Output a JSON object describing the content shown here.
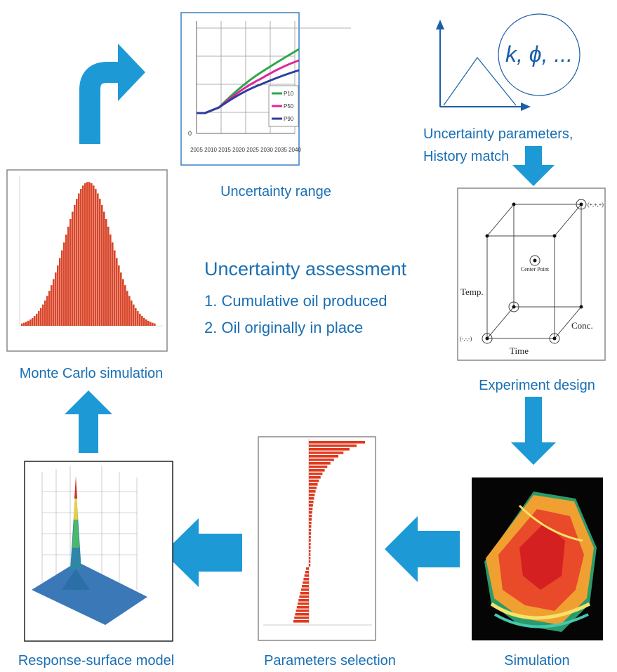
{
  "center": {
    "title": "Uncertainty assessment",
    "items": [
      "1. Cumulative oil produced",
      "2. Oil originally in place"
    ]
  },
  "uncertainty_range": {
    "caption": "Uncertainty range",
    "x_labels": [
      "2005",
      "2010",
      "2015",
      "2020",
      "2025",
      "2030",
      "2035",
      "2040"
    ],
    "y_label": "0",
    "legend": [
      "P10",
      "P50",
      "P90"
    ]
  },
  "uncertainty_parameters": {
    "caption_lines": [
      "Uncertainty parameters,",
      "History match"
    ],
    "bubble": "k, ϕ, ..."
  },
  "experiment_design": {
    "caption": "Experiment design",
    "labels": {
      "temp": "Temp.",
      "conc": "Conc.",
      "time": "Time",
      "center": "Center Point",
      "high": "(+,+,+)",
      "low": "(-,-,-)"
    }
  },
  "simulation": {
    "caption": "Simulation"
  },
  "parameters_selection": {
    "caption": "Parameters selection"
  },
  "response_surface": {
    "caption": "Response-surface model"
  },
  "monte_carlo": {
    "caption": "Monte Carlo simulation"
  }
}
